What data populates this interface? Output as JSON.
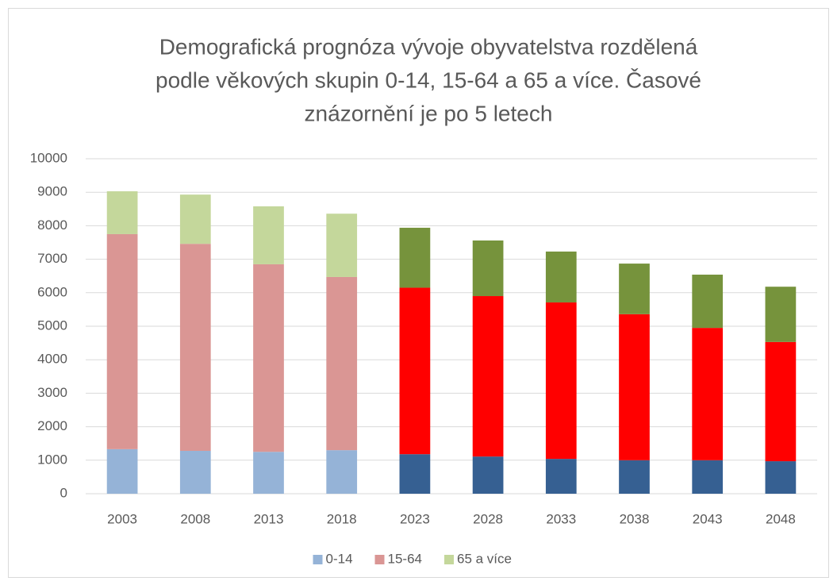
{
  "chart_data": {
    "type": "stacked_bar",
    "title": [
      "Demografická  prognóza vývoje obyvatelstva rozdělená",
      "podle věkových skupin 0-14, 15-64 a 65 a více. Časové",
      "znázornění je po 5 letech"
    ],
    "categories": [
      "2003",
      "2008",
      "2013",
      "2018",
      "2023",
      "2028",
      "2033",
      "2038",
      "2043",
      "2048"
    ],
    "series": [
      {
        "name": "0-14",
        "color": "#95b3d7",
        "colors": [
          "#95b3d7",
          "#95b3d7",
          "#95b3d7",
          "#95b3d7",
          "#366092",
          "#366092",
          "#366092",
          "#366092",
          "#366092",
          "#366092"
        ],
        "values": [
          1330,
          1280,
          1250,
          1300,
          1180,
          1110,
          1040,
          1000,
          1000,
          970
        ]
      },
      {
        "name": "15-64",
        "color": "#da9694",
        "colors": [
          "#da9694",
          "#da9694",
          "#da9694",
          "#da9694",
          "#ff0000",
          "#ff0000",
          "#ff0000",
          "#ff0000",
          "#ff0000",
          "#ff0000"
        ],
        "values": [
          6420,
          6180,
          5600,
          5170,
          4970,
          4790,
          4670,
          4360,
          3950,
          3560
        ]
      },
      {
        "name": "65 a více",
        "color": "#c4d79b",
        "colors": [
          "#c4d79b",
          "#c4d79b",
          "#c4d79b",
          "#c4d79b",
          "#76933c",
          "#76933c",
          "#76933c",
          "#76933c",
          "#76933c",
          "#76933c"
        ],
        "values": [
          1280,
          1470,
          1730,
          1890,
          1790,
          1660,
          1520,
          1510,
          1590,
          1650
        ]
      }
    ],
    "ylim": [
      0,
      10000
    ],
    "yticks": [
      0,
      1000,
      2000,
      3000,
      4000,
      5000,
      6000,
      7000,
      8000,
      9000,
      10000
    ],
    "grid": true,
    "legend": "bottom"
  }
}
